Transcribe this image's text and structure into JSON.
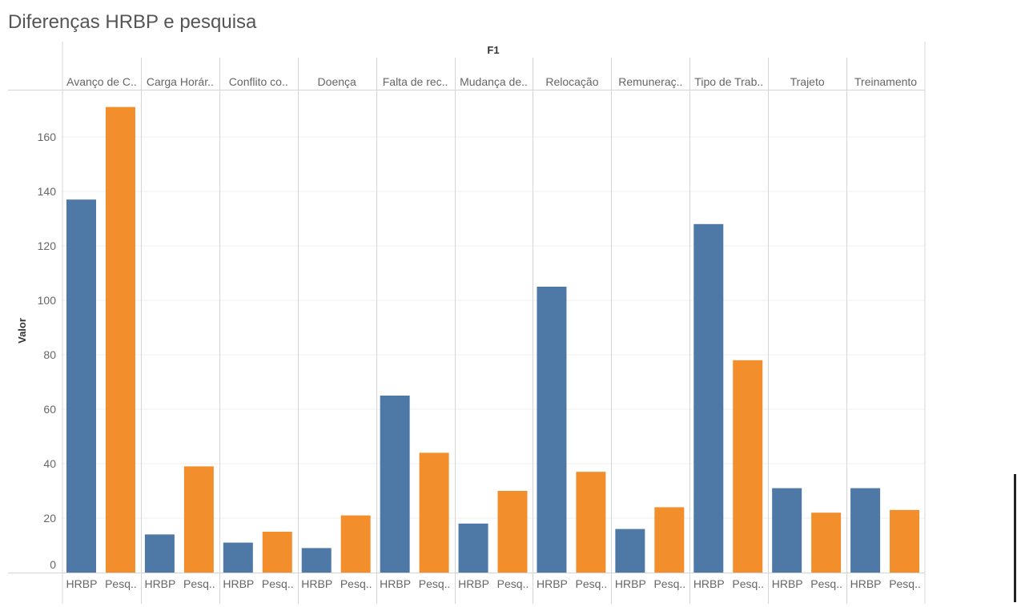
{
  "chart_data": {
    "type": "bar",
    "title": "Diferenças HRBP e pesquisa",
    "column_header": "F1",
    "ylabel": "Valor",
    "ylim": [
      0,
      175
    ],
    "yticks": [
      0,
      20,
      40,
      60,
      80,
      100,
      120,
      140,
      160
    ],
    "grid": true,
    "categories": [
      "Avanço de C..",
      "Carga Horár..",
      "Conflito co..",
      "Doença",
      "Falta de rec..",
      "Mudança de..",
      "Relocação",
      "Remuneraç..",
      "Tipo de Trab..",
      "Trajeto",
      "Treinamento"
    ],
    "sub_labels": [
      "HRBP",
      "Pesq.."
    ],
    "series": [
      {
        "key": "HRBP",
        "color": "#4e79a7",
        "values": [
          137,
          14,
          11,
          9,
          65,
          18,
          105,
          16,
          128,
          31,
          31
        ]
      },
      {
        "key": "Pesquisa",
        "color": "#f28e2b",
        "values": [
          171,
          39,
          15,
          21,
          44,
          30,
          37,
          24,
          78,
          22,
          23
        ]
      }
    ]
  }
}
